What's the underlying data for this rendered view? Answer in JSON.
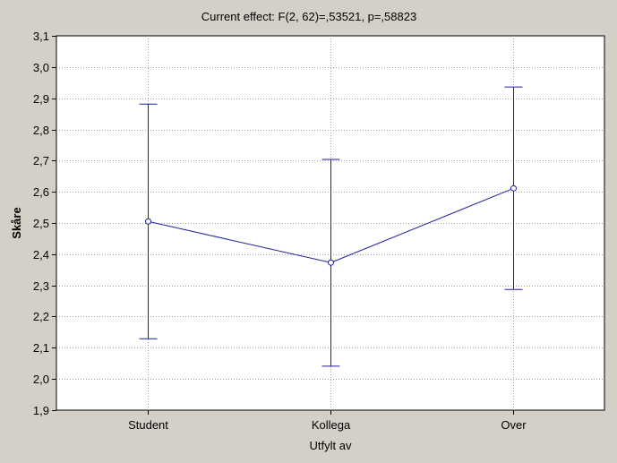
{
  "chart_data": {
    "type": "line",
    "title": "Current effect: F(2, 62)=,53521, p=,58823",
    "xlabel": "Utfylt av",
    "ylabel": "Skåre",
    "categories": [
      "Student",
      "Kollega",
      "Over"
    ],
    "series": [
      {
        "values": [
          2.505,
          2.373,
          2.611
        ],
        "error_low": [
          2.129,
          2.041,
          2.287
        ],
        "error_high": [
          2.881,
          2.704,
          2.936
        ]
      }
    ],
    "ylim": [
      1.9,
      3.1
    ],
    "yticks": [
      "1,9",
      "2,0",
      "2,1",
      "2,2",
      "2,3",
      "2,4",
      "2,5",
      "2,6",
      "2,7",
      "2,8",
      "2,9",
      "3,0",
      "3,1"
    ],
    "grid": true,
    "legend": "none",
    "colors": {
      "series": "#1f1fa0",
      "grid": "#a0a0a0",
      "plot_bg": "#ffffff",
      "page_bg": "#d4d0c8"
    }
  }
}
